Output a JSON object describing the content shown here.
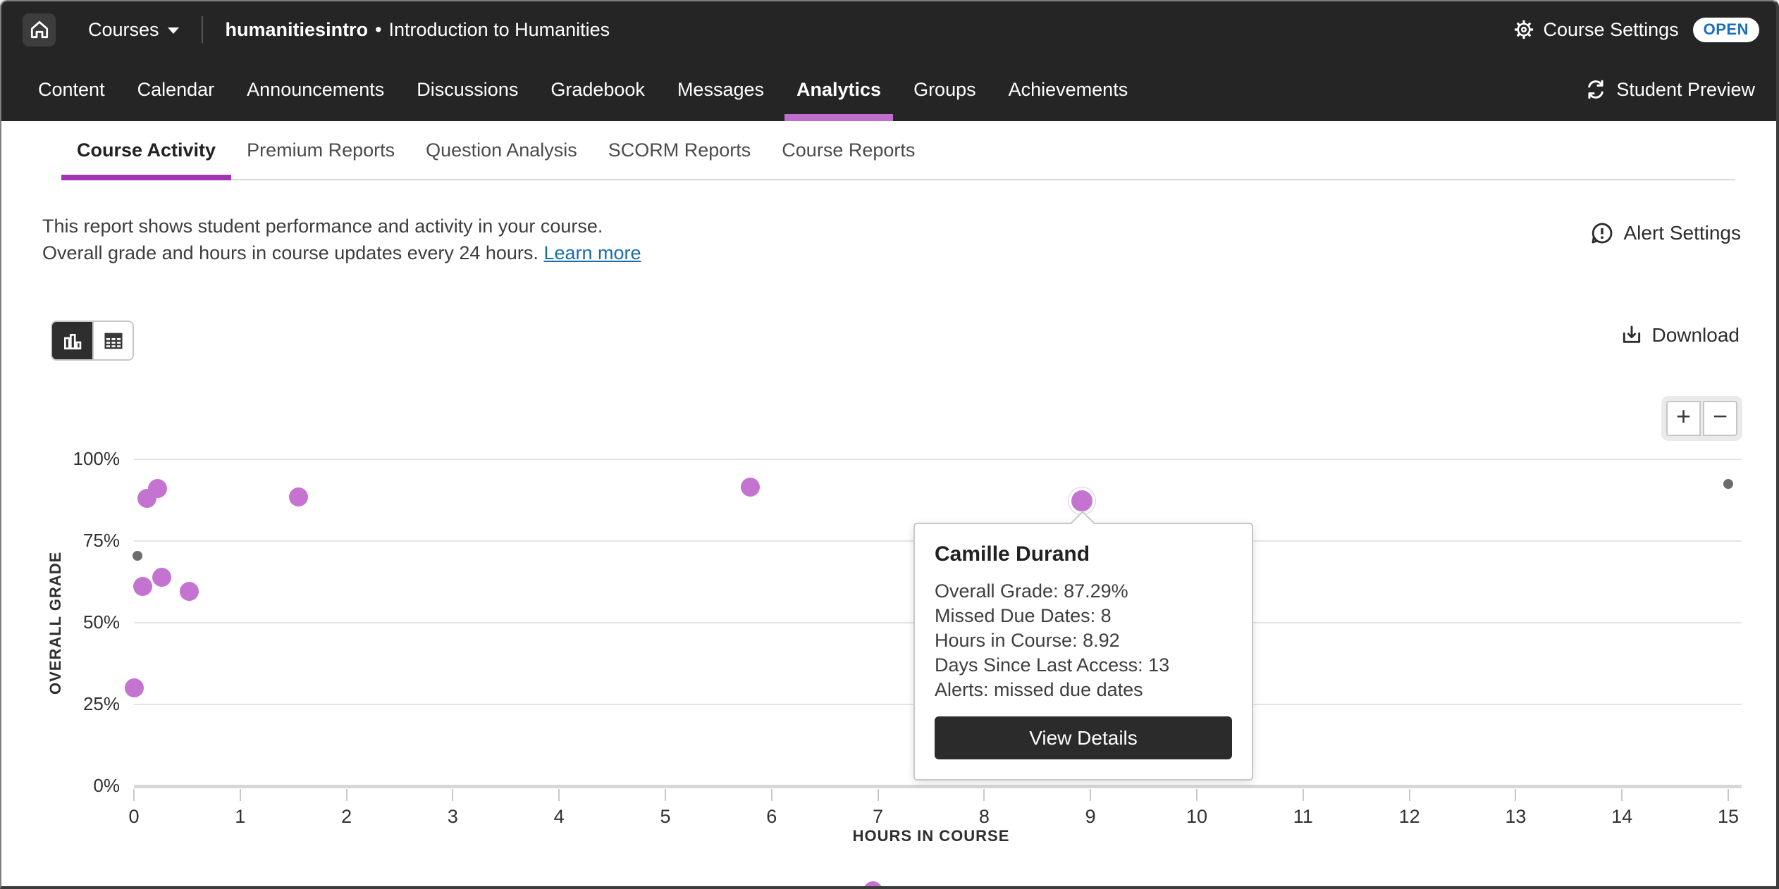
{
  "topbar": {
    "courses_label": "Courses",
    "course_code": "humanitiesintro",
    "separator": "•",
    "course_title": "Introduction to Humanities",
    "settings_label": "Course Settings",
    "open_badge": "OPEN",
    "open_badge_color": "#1a6dbe"
  },
  "nav": {
    "tabs": [
      {
        "label": "Content",
        "active": false
      },
      {
        "label": "Calendar",
        "active": false
      },
      {
        "label": "Announcements",
        "active": false
      },
      {
        "label": "Discussions",
        "active": false
      },
      {
        "label": "Gradebook",
        "active": false
      },
      {
        "label": "Messages",
        "active": false
      },
      {
        "label": "Analytics",
        "active": true
      },
      {
        "label": "Groups",
        "active": false
      },
      {
        "label": "Achievements",
        "active": false
      }
    ],
    "active_underline_color": "#bf6ecb",
    "student_preview": "Student Preview"
  },
  "subnav": {
    "tabs": [
      {
        "label": "Course Activity",
        "active": true
      },
      {
        "label": "Premium Reports",
        "active": false
      },
      {
        "label": "Question Analysis",
        "active": false
      },
      {
        "label": "SCORM Reports",
        "active": false
      },
      {
        "label": "Course Reports",
        "active": false
      }
    ]
  },
  "report_info": {
    "line1": "This report shows student performance and activity in your course.",
    "line2": "Overall grade and hours in course updates every 24 hours.",
    "learn_more": "Learn more",
    "alert_settings": "Alert Settings"
  },
  "toolbar": {
    "download_label": "Download",
    "zoom_in": "+",
    "zoom_out": "−"
  },
  "tooltip": {
    "name": "Camille Durand",
    "lines": [
      "Overall Grade: 87.29%",
      "Missed Due Dates: 8",
      "Hours in Course: 8.92",
      "Days Since Last Access: 13",
      "Alerts: missed due dates"
    ],
    "button": "View Details"
  },
  "chart_data": {
    "type": "scatter",
    "xlabel": "HOURS IN COURSE",
    "ylabel": "OVERALL GRADE",
    "xlim": [
      0,
      15
    ],
    "ylim": [
      0,
      100
    ],
    "grid": true,
    "x_ticks": [
      0,
      1,
      2,
      3,
      4,
      5,
      6,
      7,
      8,
      9,
      10,
      11,
      12,
      13,
      14,
      15
    ],
    "y_ticks": [
      {
        "value": 100,
        "label": "100%"
      },
      {
        "value": 75,
        "label": "75%"
      },
      {
        "value": 50,
        "label": "50%"
      },
      {
        "value": 25,
        "label": "25%"
      },
      {
        "value": 0,
        "label": "0%"
      }
    ],
    "series": [
      {
        "name": "students-purple",
        "color": "#c473d1",
        "style": "primary",
        "points": [
          {
            "x": 0.12,
            "y": 88
          },
          {
            "x": 0.22,
            "y": 91
          },
          {
            "x": 1.55,
            "y": 88.5
          },
          {
            "x": 0.08,
            "y": 61
          },
          {
            "x": 0.26,
            "y": 64
          },
          {
            "x": 0.52,
            "y": 59.5
          },
          {
            "x": 0.0,
            "y": 30
          },
          {
            "x": 5.8,
            "y": 91.5
          },
          {
            "x": 6.95,
            "y": -32
          }
        ]
      },
      {
        "name": "students-gray",
        "color": "#6c6c6c",
        "style": "muted",
        "points": [
          {
            "x": 0.03,
            "y": 70.5
          },
          {
            "x": 15.0,
            "y": 92.5
          }
        ]
      }
    ],
    "highlighted_point": {
      "name": "Camille Durand",
      "x": 8.92,
      "y": 87.29,
      "color": "#c473d1"
    }
  }
}
